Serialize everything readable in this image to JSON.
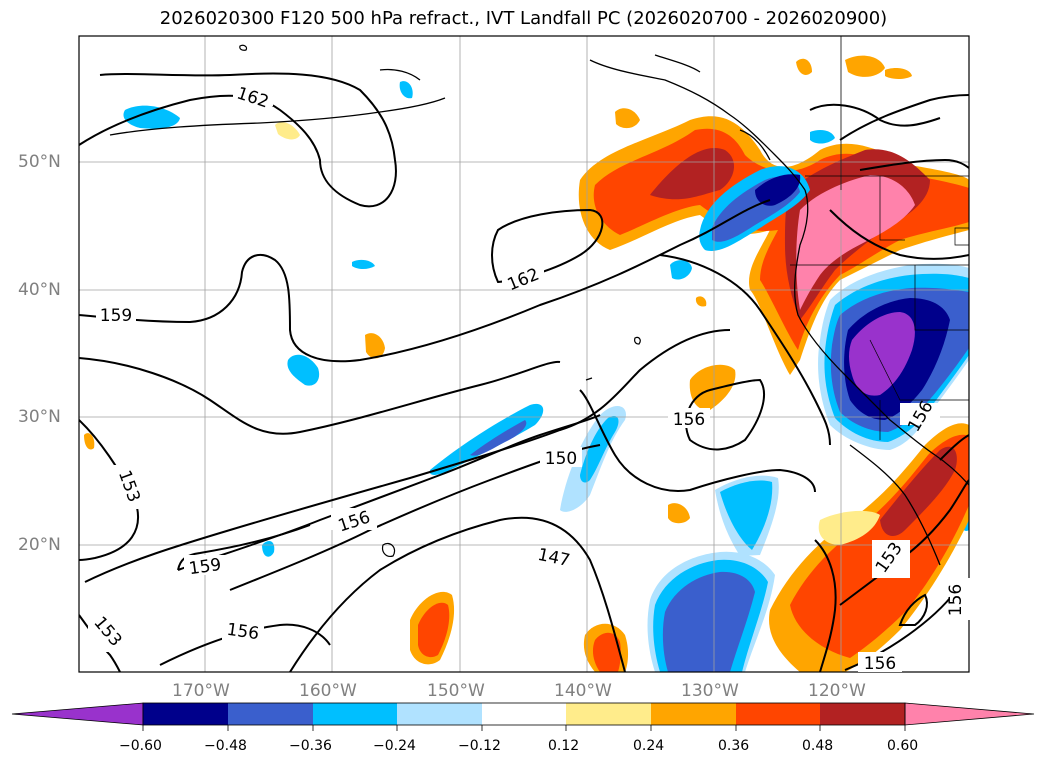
{
  "title": "2026020300 F120 500 hPa refract., IVT Landfall PC (2026020700 - 2026020900)",
  "lat_labels": [
    "50°N",
    "40°N",
    "30°N",
    "20°N"
  ],
  "lon_labels": [
    "170°W",
    "160°W",
    "150°W",
    "140°W",
    "130°W",
    "120°W"
  ],
  "contour_labels": [
    "162",
    "162",
    "159",
    "159",
    "156",
    "156",
    "156",
    "156",
    "156",
    "156",
    "153",
    "153",
    "153",
    "150",
    "147"
  ],
  "colorbar": {
    "ticks": [
      "−0.60",
      "−0.48",
      "−0.36",
      "−0.24",
      "−0.12",
      "0.12",
      "0.24",
      "0.36",
      "0.48",
      "0.60"
    ],
    "colors": [
      "#9932cc",
      "#00008b",
      "#3a5fcd",
      "#00bfff",
      "#b0e2ff",
      "#ffffff",
      "#ffec8b",
      "#ffa500",
      "#ff4500",
      "#b22222",
      "#ff82ab"
    ]
  }
}
